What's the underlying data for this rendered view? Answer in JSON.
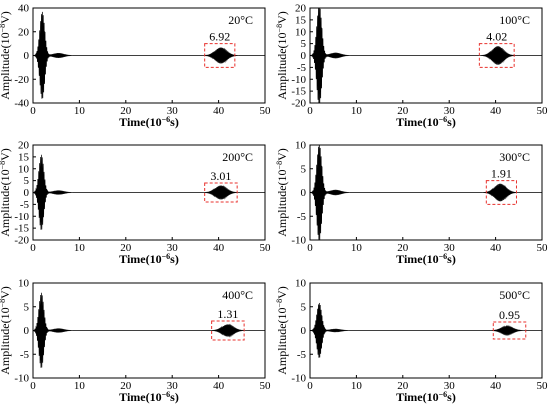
{
  "figure": {
    "x_label_main": "Time(10",
    "x_label_exp": "−6",
    "x_label_tail": "s)",
    "y_label_main": "Amplitude(10",
    "y_label_exp": "−8",
    "y_label_tail": "V)",
    "highlight_color": "#e8312d",
    "trace_color": "#000000"
  },
  "chart_data": [
    {
      "type": "line",
      "title": "20°C",
      "xlabel": "Time(10^-6 s)",
      "ylabel": "Amplitude(10^-8 V)",
      "xlim": [
        0,
        50
      ],
      "ylim": [
        -40,
        40
      ],
      "xticks": [
        0,
        10,
        20,
        30,
        40,
        50
      ],
      "yticks": [
        -40,
        -20,
        0,
        20,
        40
      ],
      "first_pulse": {
        "center": 2.0,
        "peak_amplitude": 38
      },
      "echo": {
        "center": 40.5,
        "peak_amplitude": 6.92,
        "label": "6.92"
      },
      "highlight_box": {
        "x": [
          37,
          43.5
        ],
        "y": [
          -10,
          10
        ]
      }
    },
    {
      "type": "line",
      "title": "100°C",
      "xlabel": "Time(10^-6 s)",
      "ylabel": "Amplitude(10^-8 V)",
      "xlim": [
        0,
        50
      ],
      "ylim": [
        -20,
        20
      ],
      "xticks": [
        0,
        10,
        20,
        30,
        40,
        50
      ],
      "yticks": [
        -20,
        -15,
        -10,
        -5,
        0,
        5,
        10,
        15,
        20
      ],
      "first_pulse": {
        "center": 2.0,
        "peak_amplitude": 22
      },
      "echo": {
        "center": 40.5,
        "peak_amplitude": 4.02,
        "label": "4.02"
      },
      "highlight_box": {
        "x": [
          36.5,
          44
        ],
        "y": [
          -5,
          5
        ]
      }
    },
    {
      "type": "line",
      "title": "200°C",
      "xlabel": "Time(10^-6 s)",
      "ylabel": "Amplitude(10^-8 V)",
      "xlim": [
        0,
        50
      ],
      "ylim": [
        -20,
        20
      ],
      "xticks": [
        0,
        10,
        20,
        30,
        40,
        50
      ],
      "yticks": [
        -20,
        -15,
        -10,
        -5,
        0,
        5,
        10,
        15,
        20
      ],
      "first_pulse": {
        "center": 1.8,
        "peak_amplitude": 16
      },
      "echo": {
        "center": 40.5,
        "peak_amplitude": 3.01,
        "label": "3.01"
      },
      "highlight_box": {
        "x": [
          37,
          44
        ],
        "y": [
          -4,
          4
        ]
      }
    },
    {
      "type": "line",
      "title": "300°C",
      "xlabel": "Time(10^-6 s)",
      "ylabel": "Amplitude(10^-8 V)",
      "xlim": [
        0,
        50
      ],
      "ylim": [
        -10,
        10
      ],
      "xticks": [
        0,
        10,
        20,
        30,
        40,
        50
      ],
      "yticks": [
        -10,
        -5,
        0,
        5,
        10
      ],
      "first_pulse": {
        "center": 2.0,
        "peak_amplitude": 10.5
      },
      "echo": {
        "center": 41.0,
        "peak_amplitude": 1.91,
        "label": "1.91"
      },
      "highlight_box": {
        "x": [
          38,
          44.5
        ],
        "y": [
          -2.5,
          2.5
        ]
      }
    },
    {
      "type": "line",
      "title": "400°C",
      "xlabel": "Time(10^-6 s)",
      "ylabel": "Amplitude(10^-8 V)",
      "xlim": [
        0,
        50
      ],
      "ylim": [
        -10,
        10
      ],
      "xticks": [
        0,
        10,
        20,
        30,
        40,
        50
      ],
      "yticks": [
        -10,
        -5,
        0,
        5,
        10
      ],
      "first_pulse": {
        "center": 1.8,
        "peak_amplitude": 8
      },
      "echo": {
        "center": 42.0,
        "peak_amplitude": 1.31,
        "label": "1.31"
      },
      "highlight_box": {
        "x": [
          38.5,
          45.5
        ],
        "y": [
          -2,
          2
        ]
      }
    },
    {
      "type": "line",
      "title": "500°C",
      "xlabel": "Time(10^-6 s)",
      "ylabel": "Amplitude(10^-8 V)",
      "xlim": [
        0,
        50
      ],
      "ylim": [
        -10,
        10
      ],
      "xticks": [
        0,
        10,
        20,
        30,
        40,
        50
      ],
      "yticks": [
        -10,
        -5,
        0,
        5,
        10
      ],
      "first_pulse": {
        "center": 2.0,
        "peak_amplitude": 6
      },
      "echo": {
        "center": 42.5,
        "peak_amplitude": 0.95,
        "label": "0.95"
      },
      "highlight_box": {
        "x": [
          39.5,
          46.5
        ],
        "y": [
          -1.8,
          1.8
        ]
      }
    }
  ]
}
